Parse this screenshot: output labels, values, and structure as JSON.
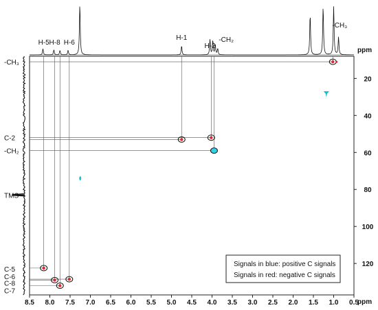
{
  "chart_data": {
    "type": "scatter",
    "title": "",
    "xlabel": "ppm",
    "ylabel": "ppm",
    "xlim": [
      8.5,
      0.5
    ],
    "ylim": [
      8,
      137
    ],
    "x_ticks": [
      "8.5",
      "8.0",
      "7.5",
      "7.0",
      "6.5",
      "6.0",
      "5.5",
      "5.0",
      "4.5",
      "4.0",
      "3.5",
      "3.0",
      "2.5",
      "2.0",
      "1.5",
      "1.0",
      "0.5"
    ],
    "y_ticks": [
      "20",
      "40",
      "60",
      "80",
      "100",
      "120"
    ],
    "proton_labels": [
      {
        "text": "H-5",
        "ppm": 8.15
      },
      {
        "text": "H-8",
        "ppm": 7.88
      },
      {
        "text": "H-6",
        "ppm": 7.52
      },
      {
        "text": "H-1",
        "ppm": 4.75
      },
      {
        "text": "H-2",
        "ppm": 4.05
      },
      {
        "text": "-CH₂",
        "ppm": 3.65
      },
      {
        "text": "-CH₃",
        "ppm": 0.85
      }
    ],
    "carbon_labels": [
      {
        "text": "-CH₃",
        "ppm": 11
      },
      {
        "text": "C-2",
        "ppm": 52
      },
      {
        "text": "-CH₂",
        "ppm": 59
      },
      {
        "text": "TMS",
        "ppm": 83
      },
      {
        "text": "C-5",
        "ppm": 123
      },
      {
        "text": "C-6",
        "ppm": 127
      },
      {
        "text": "C-8",
        "ppm": 130.5
      },
      {
        "text": "C-7",
        "ppm": 134.5
      }
    ],
    "series": [
      {
        "values": [
          {
            "x": 1.02,
            "y": 11,
            "sign": "negative"
          },
          {
            "x": 4.75,
            "y": 53,
            "sign": "negative"
          },
          {
            "x": 4.02,
            "y": 52,
            "sign": "negative"
          },
          {
            "x": 8.15,
            "y": 122.5,
            "sign": "negative"
          },
          {
            "x": 7.88,
            "y": 129,
            "sign": "negative"
          },
          {
            "x": 7.52,
            "y": 128.5,
            "sign": "negative"
          },
          {
            "x": 7.75,
            "y": 132,
            "sign": "negative"
          }
        ]
      },
      {
        "values": [
          {
            "x": 3.95,
            "y": 59,
            "sign": "positive"
          },
          {
            "x": 1.18,
            "y": 28,
            "sign": "positive"
          },
          {
            "x": 7.25,
            "y": 74,
            "sign": "positive"
          }
        ]
      }
    ],
    "proton_spectrum": [
      {
        "ppm": 8.17,
        "h": 0.12
      },
      {
        "ppm": 7.9,
        "h": 0.1
      },
      {
        "ppm": 7.75,
        "h": 0.09
      },
      {
        "ppm": 7.55,
        "h": 0.09
      },
      {
        "ppm": 7.26,
        "h": 1.0
      },
      {
        "ppm": 4.75,
        "h": 0.18
      },
      {
        "ppm": 4.05,
        "h": 0.3
      },
      {
        "ppm": 3.98,
        "h": 0.28
      },
      {
        "ppm": 3.92,
        "h": 0.2
      },
      {
        "ppm": 3.86,
        "h": 0.12
      },
      {
        "ppm": 1.58,
        "h": 0.8
      },
      {
        "ppm": 1.26,
        "h": 0.95
      },
      {
        "ppm": 1.0,
        "h": 0.95
      },
      {
        "ppm": 0.88,
        "h": 0.35
      }
    ],
    "legend": {
      "position": "bottom-right",
      "lines": [
        "Signals in blue: positive C signals",
        "Signals in red: negative C signals"
      ]
    },
    "colors": {
      "negative": "#e0282f",
      "positive": "#19c0d8",
      "positive_fill": "#2fd3e6"
    },
    "grid": false
  }
}
